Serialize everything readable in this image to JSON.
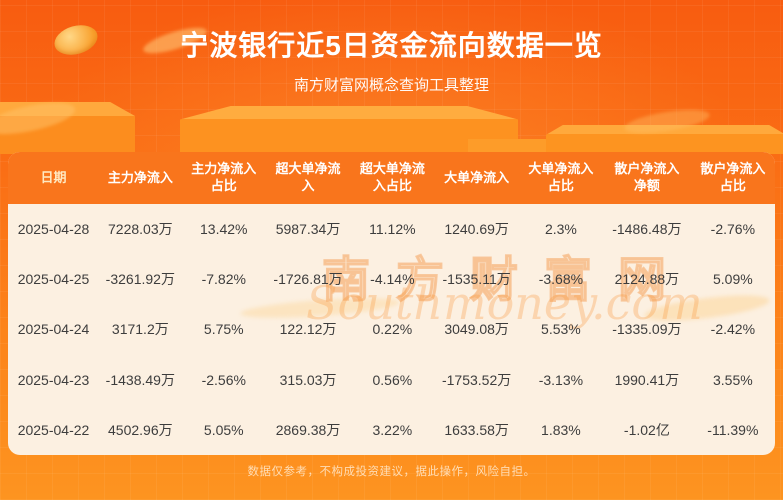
{
  "page": {
    "title": "宁波银行近5日资金流向数据一览",
    "subtitle": "南方财富网概念查询工具整理",
    "disclaimer": "数据仅参考，不构成投资建议，据此操作，风险自担。",
    "watermark": {
      "cn": "南方财富网",
      "en": "Southmoney.com"
    }
  },
  "colors": {
    "background_top": "#f85c10",
    "background_bottom": "#fd9420",
    "table_header_bg": "#f9751c",
    "table_body_bg": "#fcf0e1",
    "title_text": "#ffffff",
    "body_text": "#3d3d3d",
    "gold_accent": "#ffb84d"
  },
  "chart_data": {
    "type": "table",
    "title": "宁波银行近5日资金流向数据一览",
    "subtitle": "南方财富网概念查询工具整理",
    "columns": [
      "日期",
      "主力净流入",
      "主力净流入占比",
      "超大单净流入",
      "超大单净流入占比",
      "大单净流入",
      "大单净流入占比",
      "散户净流入净额",
      "散户净流入占比"
    ],
    "columns_display": [
      "日期",
      "主力净流入",
      "主力净流入\n占比",
      "超大单净流\n入",
      "超大单净流\n入占比",
      "大单净流入",
      "大单净流入\n占比",
      "散户净流入\n净额",
      "散户净流入\n占比"
    ],
    "rows": [
      [
        "2025-04-28",
        "7228.03万",
        "13.42%",
        "5987.34万",
        "11.12%",
        "1240.69万",
        "2.3%",
        "-1486.48万",
        "-2.76%"
      ],
      [
        "2025-04-25",
        "-3261.92万",
        "-7.82%",
        "-1726.81万",
        "-4.14%",
        "-1535.11万",
        "-3.68%",
        "2124.88万",
        "5.09%"
      ],
      [
        "2025-04-24",
        "3171.2万",
        "5.75%",
        "122.12万",
        "0.22%",
        "3049.08万",
        "5.53%",
        "-1335.09万",
        "-2.42%"
      ],
      [
        "2025-04-23",
        "-1438.49万",
        "-2.56%",
        "315.03万",
        "0.56%",
        "-1753.52万",
        "-3.13%",
        "1990.41万",
        "3.55%"
      ],
      [
        "2025-04-22",
        "4502.96万",
        "5.05%",
        "2869.38万",
        "3.22%",
        "1633.58万",
        "1.83%",
        "-1.02亿",
        "-11.39%"
      ]
    ]
  }
}
